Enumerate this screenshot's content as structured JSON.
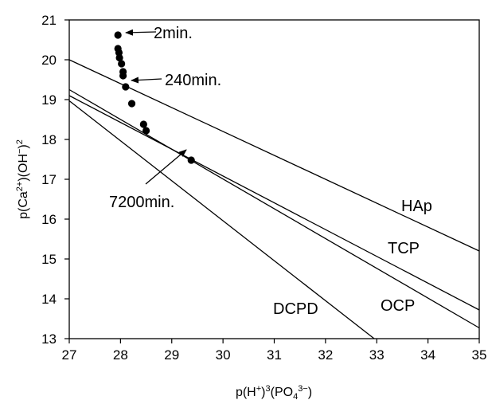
{
  "chart_data": {
    "type": "scatter",
    "title": "",
    "xlabel": "p(H+)3(PO43-)",
    "ylabel": "p(Ca2+)(OH-)2",
    "xlim": [
      27,
      35
    ],
    "ylim": [
      13,
      21
    ],
    "xticks": [
      "27",
      "28",
      "29",
      "30",
      "31",
      "32",
      "33",
      "34",
      "35"
    ],
    "yticks": [
      "13",
      "14",
      "15",
      "16",
      "17",
      "18",
      "19",
      "20",
      "21"
    ],
    "grid": false,
    "points": [
      {
        "x": 27.95,
        "y": 20.62
      },
      {
        "x": 27.95,
        "y": 20.28
      },
      {
        "x": 27.97,
        "y": 20.18
      },
      {
        "x": 27.98,
        "y": 20.05
      },
      {
        "x": 28.02,
        "y": 19.9
      },
      {
        "x": 28.05,
        "y": 19.7
      },
      {
        "x": 28.05,
        "y": 19.6
      },
      {
        "x": 28.1,
        "y": 19.32
      },
      {
        "x": 28.22,
        "y": 18.9
      },
      {
        "x": 28.45,
        "y": 18.38
      },
      {
        "x": 28.5,
        "y": 18.22
      },
      {
        "x": 29.38,
        "y": 17.48
      }
    ],
    "lines": [
      {
        "name": "HAp",
        "points": [
          [
            27,
            20.0
          ],
          [
            35,
            15.2
          ]
        ]
      },
      {
        "name": "TCP",
        "points": [
          [
            27,
            19.1
          ],
          [
            35,
            13.72
          ]
        ]
      },
      {
        "name": "OCP",
        "points": [
          [
            27,
            19.25
          ],
          [
            35,
            13.27
          ]
        ]
      },
      {
        "name": "DCPD",
        "points": [
          [
            27,
            18.97
          ],
          [
            32.95,
            13.0
          ]
        ]
      }
    ],
    "annotations": [
      {
        "text": "2min.",
        "x": 27.95,
        "y": 20.62
      },
      {
        "text": "240min.",
        "x": 28.1,
        "y": 19.4
      },
      {
        "text": "7200min.",
        "x": 29.38,
        "y": 17.48
      }
    ]
  }
}
